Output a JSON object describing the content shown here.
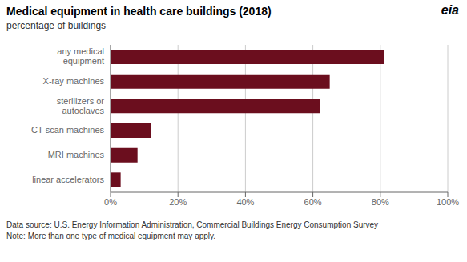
{
  "chart_data": {
    "type": "bar",
    "orientation": "horizontal",
    "title": "Medical equipment in health care buildings (2018)",
    "subtitle": "percentage of buildings",
    "categories": [
      "linear accelerators",
      "MRI machines",
      "CT scan machines",
      "sterilizers or\nautoclaves",
      "X-ray machines",
      "any medical\nequipment"
    ],
    "values": [
      3,
      8,
      12,
      62,
      65,
      81
    ],
    "color": "#6B0E1E",
    "xlim": [
      0,
      100
    ],
    "xticks": [
      {
        "value": 0,
        "label": "0%"
      },
      {
        "value": 20,
        "label": "20%"
      },
      {
        "value": 40,
        "label": "40%"
      },
      {
        "value": 60,
        "label": "60%"
      },
      {
        "value": 80,
        "label": "80%"
      },
      {
        "value": 100,
        "label": "100%"
      }
    ],
    "grid": true,
    "annotations": [
      "eia",
      "Data source: U.S. Energy Information Administration, Commercial Buildings Energy Consumption Survey",
      "Note: More than one type of medical equipment may apply."
    ]
  }
}
